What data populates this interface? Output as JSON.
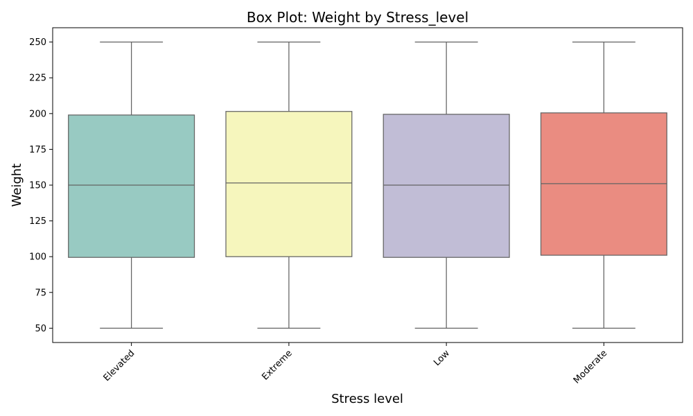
{
  "chart_data": {
    "type": "box",
    "title": "Box Plot: Weight by Stress_level",
    "xlabel": "Stress level",
    "ylabel": "Weight",
    "ylim": [
      40,
      260
    ],
    "yticks": [
      50,
      75,
      100,
      125,
      150,
      175,
      200,
      225,
      250
    ],
    "grid": false,
    "categories": [
      "Elevated",
      "Extreme",
      "Low",
      "Moderate"
    ],
    "boxes": [
      {
        "category": "Elevated",
        "min": 50,
        "q1": 99.5,
        "median": 150,
        "q3": 199,
        "max": 250,
        "color": "#98CAC2"
      },
      {
        "category": "Extreme",
        "min": 50,
        "q1": 100,
        "median": 151.5,
        "q3": 201.5,
        "max": 250,
        "color": "#F6F6BD"
      },
      {
        "category": "Low",
        "min": 50,
        "q1": 99.5,
        "median": 150,
        "q3": 199.5,
        "max": 250,
        "color": "#C1BDD6"
      },
      {
        "category": "Moderate",
        "min": 50,
        "q1": 101,
        "median": 151,
        "q3": 200.5,
        "max": 250,
        "color": "#EA8C81"
      }
    ],
    "line_color": "#636363",
    "tick_label_rotation_deg": 45
  }
}
